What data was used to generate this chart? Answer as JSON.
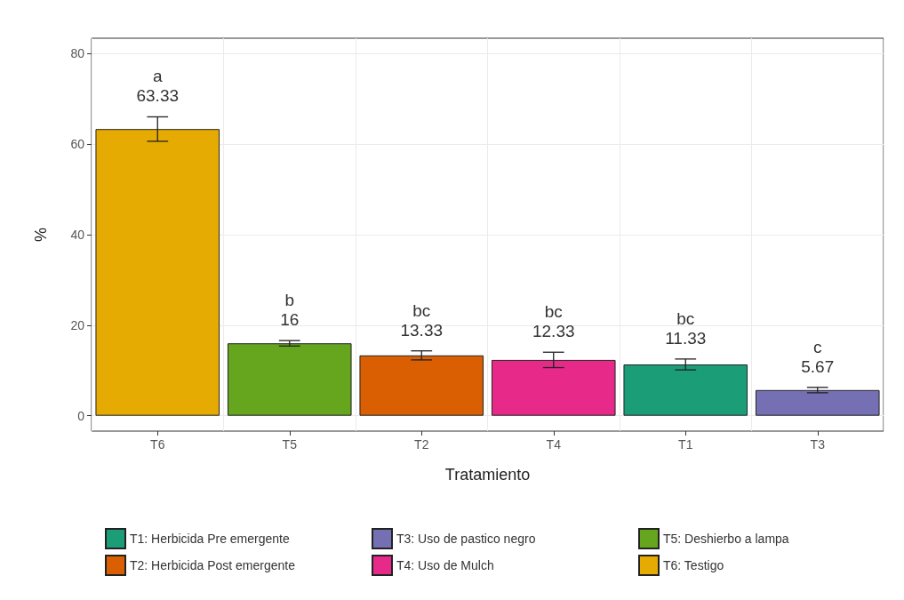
{
  "chart_data": {
    "type": "bar",
    "xlabel": "Tratamiento",
    "ylabel": "%",
    "categories": [
      "T6",
      "T5",
      "T2",
      "T4",
      "T1",
      "T3"
    ],
    "series": [
      {
        "name": "T1: Herbicida Pre emergente",
        "color": "#1b9e77",
        "values": [
          null,
          null,
          null,
          null,
          11.33,
          null
        ],
        "errors": [
          null,
          null,
          null,
          null,
          1.2,
          null
        ]
      },
      {
        "name": "T2: Herbicida Post emergente",
        "color": "#d95f02",
        "values": [
          null,
          null,
          13.33,
          null,
          null,
          null
        ],
        "errors": [
          null,
          null,
          1.0,
          null,
          null,
          null
        ]
      },
      {
        "name": "T3: Uso de pastico negro",
        "color": "#7570b3",
        "values": [
          null,
          null,
          null,
          null,
          null,
          5.67
        ],
        "errors": [
          null,
          null,
          null,
          null,
          null,
          0.6
        ]
      },
      {
        "name": "T4: Uso de Mulch",
        "color": "#e7298a",
        "values": [
          null,
          null,
          null,
          12.33,
          null,
          null
        ],
        "errors": [
          null,
          null,
          null,
          1.7,
          null,
          null
        ]
      },
      {
        "name": "T5: Deshierbo a lampa",
        "color": "#66a61e",
        "values": [
          null,
          16,
          null,
          null,
          null,
          null
        ],
        "errors": [
          null,
          0.6,
          null,
          null,
          null,
          null
        ]
      },
      {
        "name": "T6: Testigo",
        "color": "#e6ab02",
        "values": [
          63.33,
          null,
          null,
          null,
          null,
          null
        ],
        "errors": [
          2.7,
          null,
          null,
          null,
          null,
          null
        ]
      }
    ],
    "annotations": [
      {
        "text": "a",
        "x": "T6",
        "y": 63.33
      },
      {
        "text": "b",
        "x": "T5",
        "y": 16
      },
      {
        "text": "bc",
        "x": "T2",
        "y": 13.33
      },
      {
        "text": "bc",
        "x": "T4",
        "y": 12.33
      },
      {
        "text": "bc",
        "x": "T1",
        "y": 11.33
      },
      {
        "text": "c",
        "x": "T3",
        "y": 5.67
      }
    ],
    "data_labels": true,
    "ylim": [
      -3.4,
      83.4
    ],
    "yticks": [
      0,
      20,
      40,
      60,
      80
    ],
    "grid": true,
    "legend": "bottom"
  }
}
